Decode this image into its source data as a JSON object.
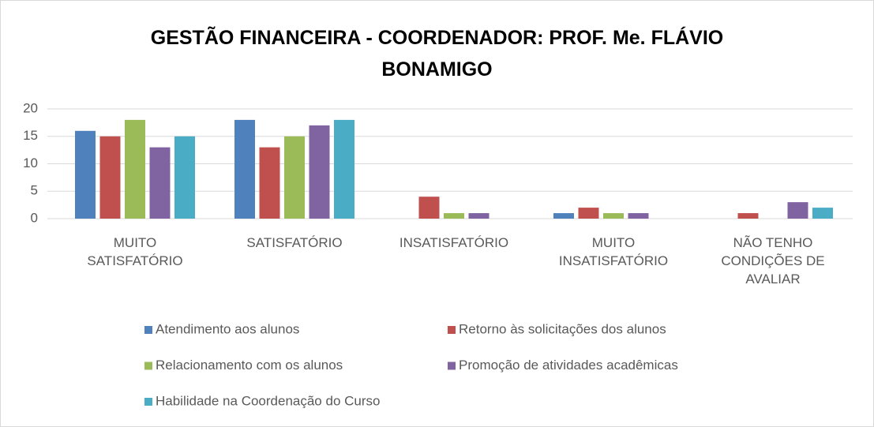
{
  "chart_data": {
    "type": "bar",
    "title": "GESTÃO FINANCEIRA - COORDENADOR: PROF. Me. FLÁVIO BONAMIGO",
    "categories": [
      "MUITO SATISFATÓRIO",
      "SATISFATÓRIO",
      "INSATISFATÓRIO",
      "MUITO INSATISFATÓRIO",
      "NÃO TENHO CONDIÇÕES DE AVALIAR"
    ],
    "series": [
      {
        "name": "Atendimento aos alunos",
        "color": "#4f81bd",
        "values": [
          16,
          18,
          0,
          1,
          0
        ]
      },
      {
        "name": "Retorno às solicitações dos alunos",
        "color": "#c0504d",
        "values": [
          15,
          13,
          4,
          2,
          1
        ]
      },
      {
        "name": "Relacionamento com os alunos",
        "color": "#9bbb59",
        "values": [
          18,
          15,
          1,
          1,
          0
        ]
      },
      {
        "name": "Promoção de atividades acadêmicas",
        "color": "#8064a2",
        "values": [
          13,
          17,
          1,
          1,
          3
        ]
      },
      {
        "name": "Habilidade na Coordenação do Curso",
        "color": "#4bacc6",
        "values": [
          15,
          18,
          0,
          0,
          2
        ]
      }
    ],
    "ylim": [
      0,
      20
    ],
    "yticks": [
      0,
      5,
      10,
      15,
      20
    ],
    "grid": true,
    "legend": "bottom"
  }
}
